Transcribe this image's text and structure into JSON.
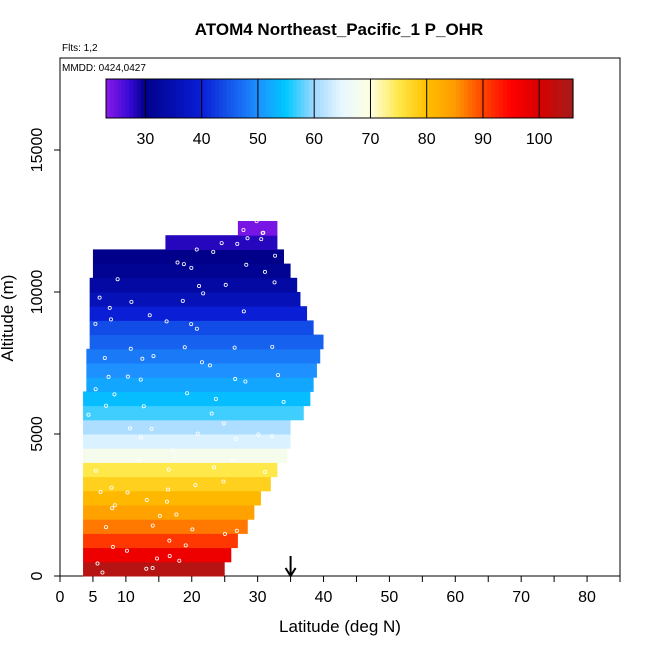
{
  "header": {
    "title": "ATOM4 Northeast_Pacific_1 P_OHR",
    "flights": "Flts: 1,2",
    "dates": "MMDD: 0424,0427"
  },
  "chart_data": {
    "type": "heatmap",
    "title": "ATOM4 Northeast_Pacific_1 P_OHR",
    "xlabel": "Latitude (deg N)",
    "ylabel": "Altitude (m)",
    "xlim": [
      0,
      85
    ],
    "ylim": [
      0,
      18000
    ],
    "x_ticks": [
      0,
      5,
      10,
      20,
      30,
      40,
      50,
      60,
      70,
      80
    ],
    "y_ticks": [
      0,
      5000,
      10000,
      15000
    ],
    "x_minor_ticks": [
      0,
      5,
      10,
      15,
      20,
      25,
      30,
      35,
      40,
      45,
      50,
      55,
      60,
      65,
      70,
      75,
      80,
      85
    ],
    "grid": false,
    "colorbar": {
      "position": "top inside plot",
      "range": [
        23,
        106
      ],
      "ticks": [
        30,
        40,
        50,
        60,
        70,
        80,
        90,
        100
      ],
      "colors": [
        [
          23,
          "#8b1ae8"
        ],
        [
          27,
          "#3b0ad8"
        ],
        [
          30,
          "#00008b"
        ],
        [
          40,
          "#0a1ed6"
        ],
        [
          50,
          "#1e90ff"
        ],
        [
          55,
          "#00c8ff"
        ],
        [
          60,
          "#a0d8ff"
        ],
        [
          65,
          "#e8f8ff"
        ],
        [
          70,
          "#ffffe0"
        ],
        [
          75,
          "#ffe84a"
        ],
        [
          80,
          "#ffc000"
        ],
        [
          85,
          "#ff9a00"
        ],
        [
          90,
          "#ff4500"
        ],
        [
          95,
          "#ff0000"
        ],
        [
          100,
          "#d80000"
        ],
        [
          106,
          "#a51c1c"
        ]
      ]
    },
    "bins": [
      {
        "alt": [
          0,
          500
        ],
        "lat": [
          3.5,
          25
        ],
        "value": 104
      },
      {
        "alt": [
          500,
          1000
        ],
        "lat": [
          3.5,
          26
        ],
        "value": 97
      },
      {
        "alt": [
          1000,
          1500
        ],
        "lat": [
          3.5,
          27
        ],
        "value": 91
      },
      {
        "alt": [
          1500,
          2000
        ],
        "lat": [
          3.5,
          28.5
        ],
        "value": 87
      },
      {
        "alt": [
          2000,
          2500
        ],
        "lat": [
          3.5,
          29.5
        ],
        "value": 84
      },
      {
        "alt": [
          2500,
          3000
        ],
        "lat": [
          3.5,
          30.5
        ],
        "value": 81
      },
      {
        "alt": [
          3000,
          3500
        ],
        "lat": [
          3.5,
          32
        ],
        "value": 78
      },
      {
        "alt": [
          3500,
          4000
        ],
        "lat": [
          3.5,
          33
        ],
        "value": 75
      },
      {
        "alt": [
          4000,
          4500
        ],
        "lat": [
          3.5,
          34.5
        ],
        "value": 68
      },
      {
        "alt": [
          4500,
          5000
        ],
        "lat": [
          3.5,
          35
        ],
        "value": 64
      },
      {
        "alt": [
          5000,
          5500
        ],
        "lat": [
          3.5,
          35
        ],
        "value": 61
      },
      {
        "alt": [
          5500,
          6000
        ],
        "lat": [
          3.5,
          37
        ],
        "value": 57
      },
      {
        "alt": [
          6000,
          6500
        ],
        "lat": [
          3.5,
          38
        ],
        "value": 54
      },
      {
        "alt": [
          6500,
          7000
        ],
        "lat": [
          4,
          38.5
        ],
        "value": 52
      },
      {
        "alt": [
          7000,
          7500
        ],
        "lat": [
          4,
          39
        ],
        "value": 50
      },
      {
        "alt": [
          7500,
          8000
        ],
        "lat": [
          4,
          39.5
        ],
        "value": 48
      },
      {
        "alt": [
          8000,
          8500
        ],
        "lat": [
          4.5,
          40
        ],
        "value": 46
      },
      {
        "alt": [
          8500,
          9000
        ],
        "lat": [
          4.5,
          38.5
        ],
        "value": 44
      },
      {
        "alt": [
          9000,
          9500
        ],
        "lat": [
          4.5,
          37.5
        ],
        "value": 40
      },
      {
        "alt": [
          9500,
          10000
        ],
        "lat": [
          4.5,
          36.5
        ],
        "value": 36
      },
      {
        "alt": [
          10000,
          10500
        ],
        "lat": [
          4.5,
          36
        ],
        "value": 33
      },
      {
        "alt": [
          10500,
          11000
        ],
        "lat": [
          5,
          35
        ],
        "value": 31
      },
      {
        "alt": [
          11000,
          11500
        ],
        "lat": [
          5,
          34
        ],
        "value": 30
      },
      {
        "alt": [
          11500,
          12000
        ],
        "lat": [
          16,
          33
        ],
        "value": 28
      },
      {
        "alt": [
          12000,
          12500
        ],
        "lat": [
          27,
          33
        ],
        "value": 24
      }
    ],
    "annotations": [
      {
        "type": "arrow",
        "x": 35,
        "direction": "down"
      }
    ]
  }
}
